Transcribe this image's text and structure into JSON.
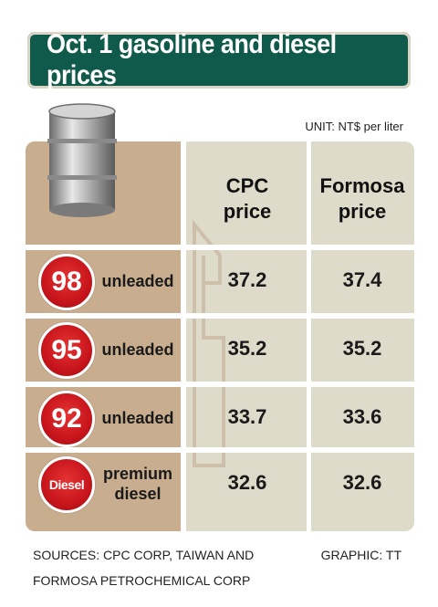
{
  "title": "Oct. 1 gasoline and diesel prices",
  "unit": "UNIT: NT$ per liter",
  "footer": {
    "sources_line1": "SOURCES: CPC CORP, TAIWAN AND",
    "sources_line2": "FORMOSA PETROCHEMICAL CORP",
    "graphic": "GRAPHIC: TT"
  },
  "colors": {
    "title_bg": "#0f5a4a",
    "badge_red": "#c8151c",
    "panel_tan": "#c8ad8f",
    "panel_gray": "#dedbcb"
  },
  "chart_data": {
    "type": "table",
    "title": "Oct. 1 gasoline and diesel prices",
    "unit": "NT$ per liter",
    "columns": [
      {
        "line1": "CPC",
        "line2": "price"
      },
      {
        "line1": "Formosa",
        "line2": "price"
      }
    ],
    "rows": [
      {
        "badge": "98",
        "label_line1": "unleaded",
        "label_line2": "",
        "cpc": "37.2",
        "formosa": "37.4"
      },
      {
        "badge": "95",
        "label_line1": "unleaded",
        "label_line2": "",
        "cpc": "35.2",
        "formosa": "35.2"
      },
      {
        "badge": "92",
        "label_line1": "unleaded",
        "label_line2": "",
        "cpc": "33.7",
        "formosa": "33.6"
      },
      {
        "badge": "Diesel",
        "label_line1": "premium",
        "label_line2": "diesel",
        "cpc": "32.6",
        "formosa": "32.6"
      }
    ]
  }
}
